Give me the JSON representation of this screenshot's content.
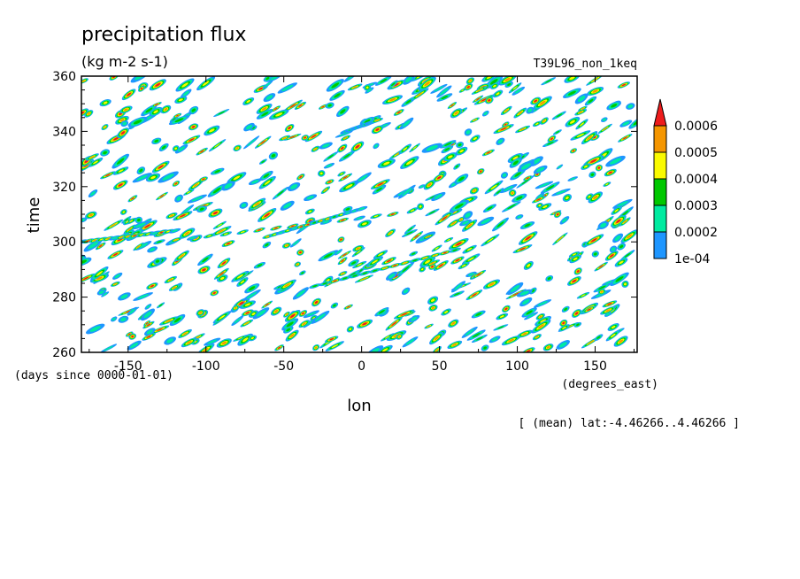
{
  "chart_data": {
    "type": "heatmap",
    "title": "precipitation flux",
    "units": "(kg m-2 s-1)",
    "dataset": "T39L96_non_1keq",
    "xlabel": "lon",
    "xunits": "(degrees_east)",
    "ylabel": "time",
    "yunits": "(days since 0000-01-01)",
    "annotation": "[ (mean) lat:-4.46266..4.46266 ]",
    "xlim": [
      -180,
      177
    ],
    "ylim": [
      260,
      360
    ],
    "xticks": [
      -150,
      -100,
      -50,
      0,
      50,
      100,
      150
    ],
    "yticks": [
      260,
      280,
      300,
      320,
      340,
      360
    ],
    "xtick_labels": [
      "-150",
      "-100",
      "-50",
      "0",
      "50",
      "100",
      "150"
    ],
    "ytick_labels": [
      "260",
      "280",
      "300",
      "320",
      "340",
      "360"
    ],
    "colorbar": {
      "levels": [
        0.0001,
        0.0002,
        0.0003,
        0.0004,
        0.0005,
        0.0006
      ],
      "labels": [
        "1e-04",
        "0.0002",
        "0.0003",
        "0.0004",
        "0.0005",
        "0.0006"
      ],
      "colors": [
        "#1e96ff",
        "#00eba0",
        "#00c800",
        "#fafa00",
        "#f59600",
        "#ee1c1c"
      ],
      "extend": "max",
      "overflow_color": "#ee1c1c"
    },
    "below_threshold_color": "#ffffff",
    "grid": false,
    "legend_placement": "right"
  }
}
